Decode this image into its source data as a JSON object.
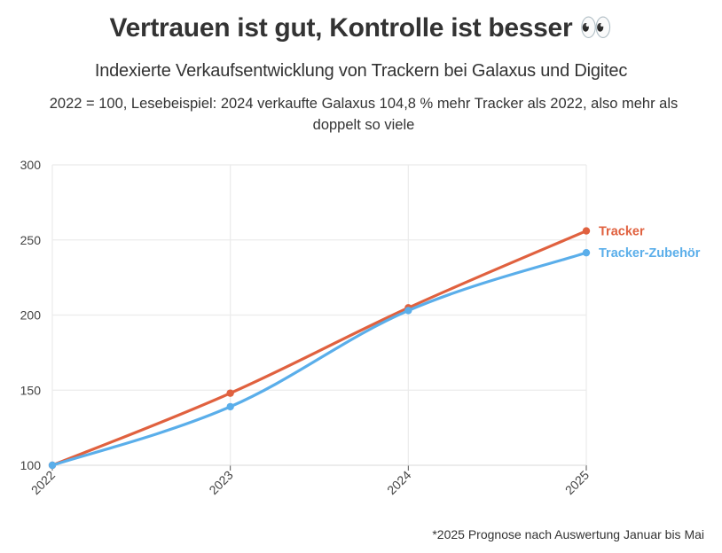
{
  "header": {
    "title": "Vertrauen ist gut, Kontrolle ist besser",
    "title_emoji": "👀",
    "subtitle": "Indexierte Verkaufsentwicklung von Trackern bei Galaxus und Digitec",
    "note": "2022 = 100, Lesebeispiel: 2024 verkaufte Galaxus 104,8 % mehr Tracker als 2022, also mehr als doppelt so viele"
  },
  "caption": "*2025 Prognose nach Auswertung Januar bis Mai",
  "chart_data": {
    "type": "line",
    "x": [
      "2022",
      "2023",
      "2024",
      "2025"
    ],
    "ylim": [
      100,
      300
    ],
    "yticks": [
      100,
      150,
      200,
      250,
      300
    ],
    "grid": true,
    "legend": "right-end labels",
    "series": [
      {
        "name": "Tracker",
        "values": [
          100,
          148,
          204.8,
          256
        ],
        "color": "#e0613f"
      },
      {
        "name": "Tracker-Zubehör",
        "values": [
          100,
          139,
          203,
          241.5
        ],
        "color": "#5aaeea"
      }
    ]
  }
}
